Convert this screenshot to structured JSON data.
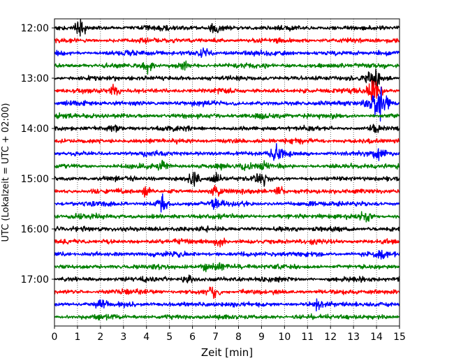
{
  "chart_data": {
    "type": "line",
    "title": "",
    "xlabel": "Zeit  [min]",
    "ylabel": "UTC (Lokalzeit = UTC + 02:00)",
    "xlim": [
      0,
      15
    ],
    "x_ticks": [
      0,
      1,
      2,
      3,
      4,
      5,
      6,
      7,
      8,
      9,
      10,
      11,
      12,
      13,
      14,
      15
    ],
    "x_tick_labels": [
      "0",
      "1",
      "2",
      "3",
      "4",
      "5",
      "6",
      "7",
      "8",
      "9",
      "10",
      "11",
      "12",
      "13",
      "14",
      "15"
    ],
    "y_start_time": "12:00",
    "y_trace_interval_minutes": 15,
    "y_ticks": [
      "12:00",
      "13:00",
      "14:00",
      "15:00",
      "16:00",
      "17:00"
    ],
    "grid": {
      "vertical": true,
      "horizontal": false,
      "style": "dotted"
    },
    "legend": "none",
    "trace_colors": [
      "#000000",
      "#ff0000",
      "#0000ff",
      "#008000"
    ],
    "traces": [
      {
        "start": "12:00",
        "color": "#000000",
        "events": [
          {
            "t": 1.1,
            "amp": 1.4
          },
          {
            "t": 7.0,
            "amp": 1.0
          }
        ]
      },
      {
        "start": "12:15",
        "color": "#ff0000",
        "events": []
      },
      {
        "start": "12:30",
        "color": "#0000ff",
        "events": [
          {
            "t": 6.5,
            "amp": 0.8
          }
        ]
      },
      {
        "start": "12:45",
        "color": "#008000",
        "events": [
          {
            "t": 4.0,
            "amp": 1.2
          },
          {
            "t": 5.6,
            "amp": 0.7
          }
        ]
      },
      {
        "start": "13:00",
        "color": "#000000",
        "events": [
          {
            "t": 13.9,
            "amp": 1.8
          }
        ]
      },
      {
        "start": "13:15",
        "color": "#ff0000",
        "events": [
          {
            "t": 2.6,
            "amp": 1.0
          },
          {
            "t": 13.9,
            "amp": 2.5
          }
        ]
      },
      {
        "start": "13:30",
        "color": "#0000ff",
        "events": [
          {
            "t": 13.9,
            "amp": 2.8
          },
          {
            "t": 14.2,
            "amp": 2.2
          }
        ]
      },
      {
        "start": "13:45",
        "color": "#008000",
        "events": [
          {
            "t": 9.0,
            "amp": 0.7
          }
        ]
      },
      {
        "start": "14:00",
        "color": "#000000",
        "events": [
          {
            "t": 2.6,
            "amp": 0.8
          },
          {
            "t": 13.9,
            "amp": 0.8
          }
        ]
      },
      {
        "start": "14:15",
        "color": "#ff0000",
        "events": []
      },
      {
        "start": "14:30",
        "color": "#0000ff",
        "events": [
          {
            "t": 9.7,
            "amp": 1.6
          },
          {
            "t": 14.1,
            "amp": 1.2
          }
        ]
      },
      {
        "start": "14:45",
        "color": "#008000",
        "events": [
          {
            "t": 4.7,
            "amp": 0.9
          },
          {
            "t": 7.3,
            "amp": 0.8
          },
          {
            "t": 8.3,
            "amp": 1.0
          },
          {
            "t": 9.0,
            "amp": 0.8
          }
        ]
      },
      {
        "start": "15:00",
        "color": "#000000",
        "events": [
          {
            "t": 6.1,
            "amp": 1.2
          },
          {
            "t": 7.0,
            "amp": 1.0
          },
          {
            "t": 9.0,
            "amp": 1.3
          }
        ]
      },
      {
        "start": "15:15",
        "color": "#ff0000",
        "events": [
          {
            "t": 4.0,
            "amp": 0.9
          },
          {
            "t": 7.0,
            "amp": 1.0
          },
          {
            "t": 9.8,
            "amp": 0.8
          }
        ]
      },
      {
        "start": "15:30",
        "color": "#0000ff",
        "events": [
          {
            "t": 4.7,
            "amp": 1.6
          },
          {
            "t": 7.0,
            "amp": 1.2
          }
        ]
      },
      {
        "start": "15:45",
        "color": "#008000",
        "events": [
          {
            "t": 13.5,
            "amp": 1.0
          }
        ]
      },
      {
        "start": "16:00",
        "color": "#000000",
        "events": []
      },
      {
        "start": "16:15",
        "color": "#ff0000",
        "events": [
          {
            "t": 7.2,
            "amp": 0.9
          }
        ]
      },
      {
        "start": "16:30",
        "color": "#0000ff",
        "events": [
          {
            "t": 14.2,
            "amp": 1.0
          }
        ]
      },
      {
        "start": "16:45",
        "color": "#008000",
        "events": [
          {
            "t": 6.6,
            "amp": 0.8
          },
          {
            "t": 7.2,
            "amp": 0.8
          }
        ]
      },
      {
        "start": "17:00",
        "color": "#000000",
        "events": [
          {
            "t": 5.8,
            "amp": 0.9
          }
        ]
      },
      {
        "start": "17:15",
        "color": "#ff0000",
        "events": [
          {
            "t": 6.9,
            "amp": 1.0
          }
        ]
      },
      {
        "start": "17:30",
        "color": "#0000ff",
        "events": [
          {
            "t": 2.0,
            "amp": 0.8
          },
          {
            "t": 11.4,
            "amp": 0.7
          }
        ]
      },
      {
        "start": "17:45",
        "color": "#008000",
        "events": []
      }
    ]
  }
}
